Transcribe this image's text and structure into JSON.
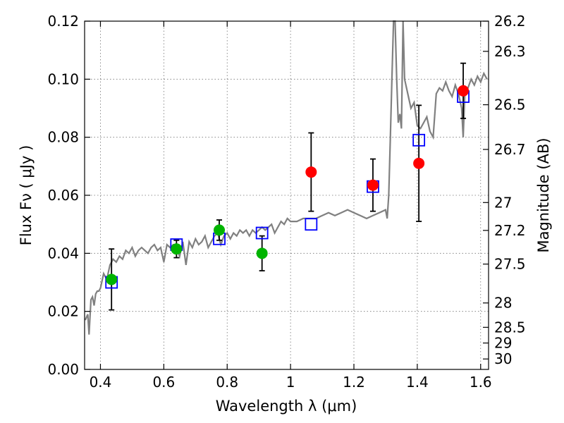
{
  "chart_data": {
    "type": "scatter",
    "xlabel": "Wavelength  λ (μm)",
    "ylabel": "Flux  Fν  ( μJy )",
    "ylabel_right": "Magnitude (AB)",
    "xlim": [
      0.35,
      1.625
    ],
    "ylim": [
      0.0,
      0.12
    ],
    "grid": true,
    "xticks": [
      0.4,
      0.6,
      0.8,
      1.0,
      1.2,
      1.4,
      1.6
    ],
    "xtick_labels": [
      "0.4",
      "0.6",
      "0.8",
      "1",
      "1.2",
      "1.4",
      "1.6"
    ],
    "yticks": [
      0.0,
      0.02,
      0.04,
      0.06,
      0.08,
      0.1,
      0.12
    ],
    "ytick_labels": [
      "0.00",
      "0.02",
      "0.04",
      "0.06",
      "0.08",
      "0.10",
      "0.12"
    ],
    "right_ticks": [
      {
        "label": "26.2",
        "flux": 0.12
      },
      {
        "label": "26.3",
        "flux": 0.1096
      },
      {
        "label": "26.5",
        "flux": 0.0912
      },
      {
        "label": "26.7",
        "flux": 0.0758
      },
      {
        "label": "27",
        "flux": 0.0575
      },
      {
        "label": "27.2",
        "flux": 0.0479
      },
      {
        "label": "27.5",
        "flux": 0.0363
      },
      {
        "label": "28",
        "flux": 0.0229
      },
      {
        "label": "28.5",
        "flux": 0.0145
      },
      {
        "label": "29",
        "flux": 0.0091
      },
      {
        "label": "30",
        "flux": 0.0036
      }
    ],
    "series": [
      {
        "kind": "model-spectrum",
        "color": "#808080",
        "x": [
          0.352,
          0.36,
          0.364,
          0.37,
          0.375,
          0.38,
          0.385,
          0.39,
          0.395,
          0.4,
          0.41,
          0.42,
          0.43,
          0.44,
          0.45,
          0.46,
          0.47,
          0.48,
          0.49,
          0.5,
          0.51,
          0.52,
          0.53,
          0.54,
          0.55,
          0.56,
          0.57,
          0.58,
          0.59,
          0.6,
          0.61,
          0.62,
          0.63,
          0.64,
          0.65,
          0.66,
          0.67,
          0.68,
          0.69,
          0.7,
          0.71,
          0.72,
          0.73,
          0.74,
          0.75,
          0.76,
          0.77,
          0.78,
          0.79,
          0.8,
          0.81,
          0.82,
          0.83,
          0.84,
          0.85,
          0.86,
          0.87,
          0.88,
          0.89,
          0.9,
          0.91,
          0.92,
          0.93,
          0.94,
          0.95,
          0.96,
          0.97,
          0.98,
          0.99,
          1.0,
          1.02,
          1.04,
          1.06,
          1.08,
          1.1,
          1.12,
          1.14,
          1.16,
          1.18,
          1.2,
          1.22,
          1.24,
          1.26,
          1.28,
          1.3,
          1.305,
          1.31,
          1.315,
          1.32,
          1.325,
          1.33,
          1.335,
          1.34,
          1.345,
          1.35,
          1.355,
          1.36,
          1.37,
          1.38,
          1.39,
          1.4,
          1.41,
          1.42,
          1.43,
          1.44,
          1.45,
          1.46,
          1.47,
          1.48,
          1.49,
          1.5,
          1.51,
          1.52,
          1.53,
          1.54,
          1.545,
          1.55,
          1.56,
          1.57,
          1.58,
          1.59,
          1.6,
          1.61,
          1.62
        ],
        "y": [
          0.017,
          0.019,
          0.012,
          0.024,
          0.025,
          0.022,
          0.026,
          0.027,
          0.027,
          0.028,
          0.033,
          0.031,
          0.036,
          0.038,
          0.037,
          0.039,
          0.038,
          0.041,
          0.04,
          0.042,
          0.039,
          0.041,
          0.042,
          0.041,
          0.04,
          0.042,
          0.043,
          0.041,
          0.042,
          0.037,
          0.043,
          0.042,
          0.043,
          0.042,
          0.039,
          0.044,
          0.036,
          0.044,
          0.042,
          0.045,
          0.043,
          0.044,
          0.046,
          0.042,
          0.044,
          0.046,
          0.047,
          0.043,
          0.046,
          0.047,
          0.045,
          0.047,
          0.046,
          0.048,
          0.047,
          0.048,
          0.046,
          0.048,
          0.047,
          0.048,
          0.049,
          0.048,
          0.049,
          0.05,
          0.047,
          0.049,
          0.051,
          0.05,
          0.052,
          0.051,
          0.051,
          0.052,
          0.052,
          0.052,
          0.053,
          0.054,
          0.053,
          0.054,
          0.055,
          0.054,
          0.053,
          0.052,
          0.053,
          0.054,
          0.055,
          0.052,
          0.06,
          0.08,
          0.1,
          0.12,
          0.14,
          0.1,
          0.085,
          0.088,
          0.083,
          0.12,
          0.1,
          0.095,
          0.09,
          0.092,
          0.084,
          0.083,
          0.085,
          0.087,
          0.082,
          0.08,
          0.095,
          0.097,
          0.096,
          0.099,
          0.096,
          0.094,
          0.098,
          0.095,
          0.09,
          0.08,
          0.095,
          0.097,
          0.1,
          0.098,
          0.101,
          0.099,
          0.102,
          0.1
        ]
      },
      {
        "kind": "model-photometry",
        "marker": "open-square",
        "color": "#0000ff",
        "x": [
          0.435,
          0.64,
          0.775,
          0.91,
          1.065,
          1.26,
          1.405,
          1.545
        ],
        "y": [
          0.03,
          0.043,
          0.045,
          0.047,
          0.05,
          0.063,
          0.079,
          0.094
        ]
      },
      {
        "kind": "observed-photometry",
        "marker": "filled-circle",
        "color": "#00b400",
        "x": [
          0.435,
          0.64,
          0.775,
          0.91
        ],
        "y": [
          0.031,
          0.0415,
          0.048,
          0.04
        ],
        "yerr": [
          0.0105,
          0.003,
          0.0035,
          0.006
        ]
      },
      {
        "kind": "observed-photometry",
        "marker": "filled-circle",
        "color": "#ff0000",
        "x": [
          1.065,
          1.26,
          1.405,
          1.545
        ],
        "y": [
          0.068,
          0.0635,
          0.071,
          0.096
        ],
        "yerr": [
          0.0135,
          0.009,
          0.02,
          0.0095
        ]
      }
    ]
  }
}
